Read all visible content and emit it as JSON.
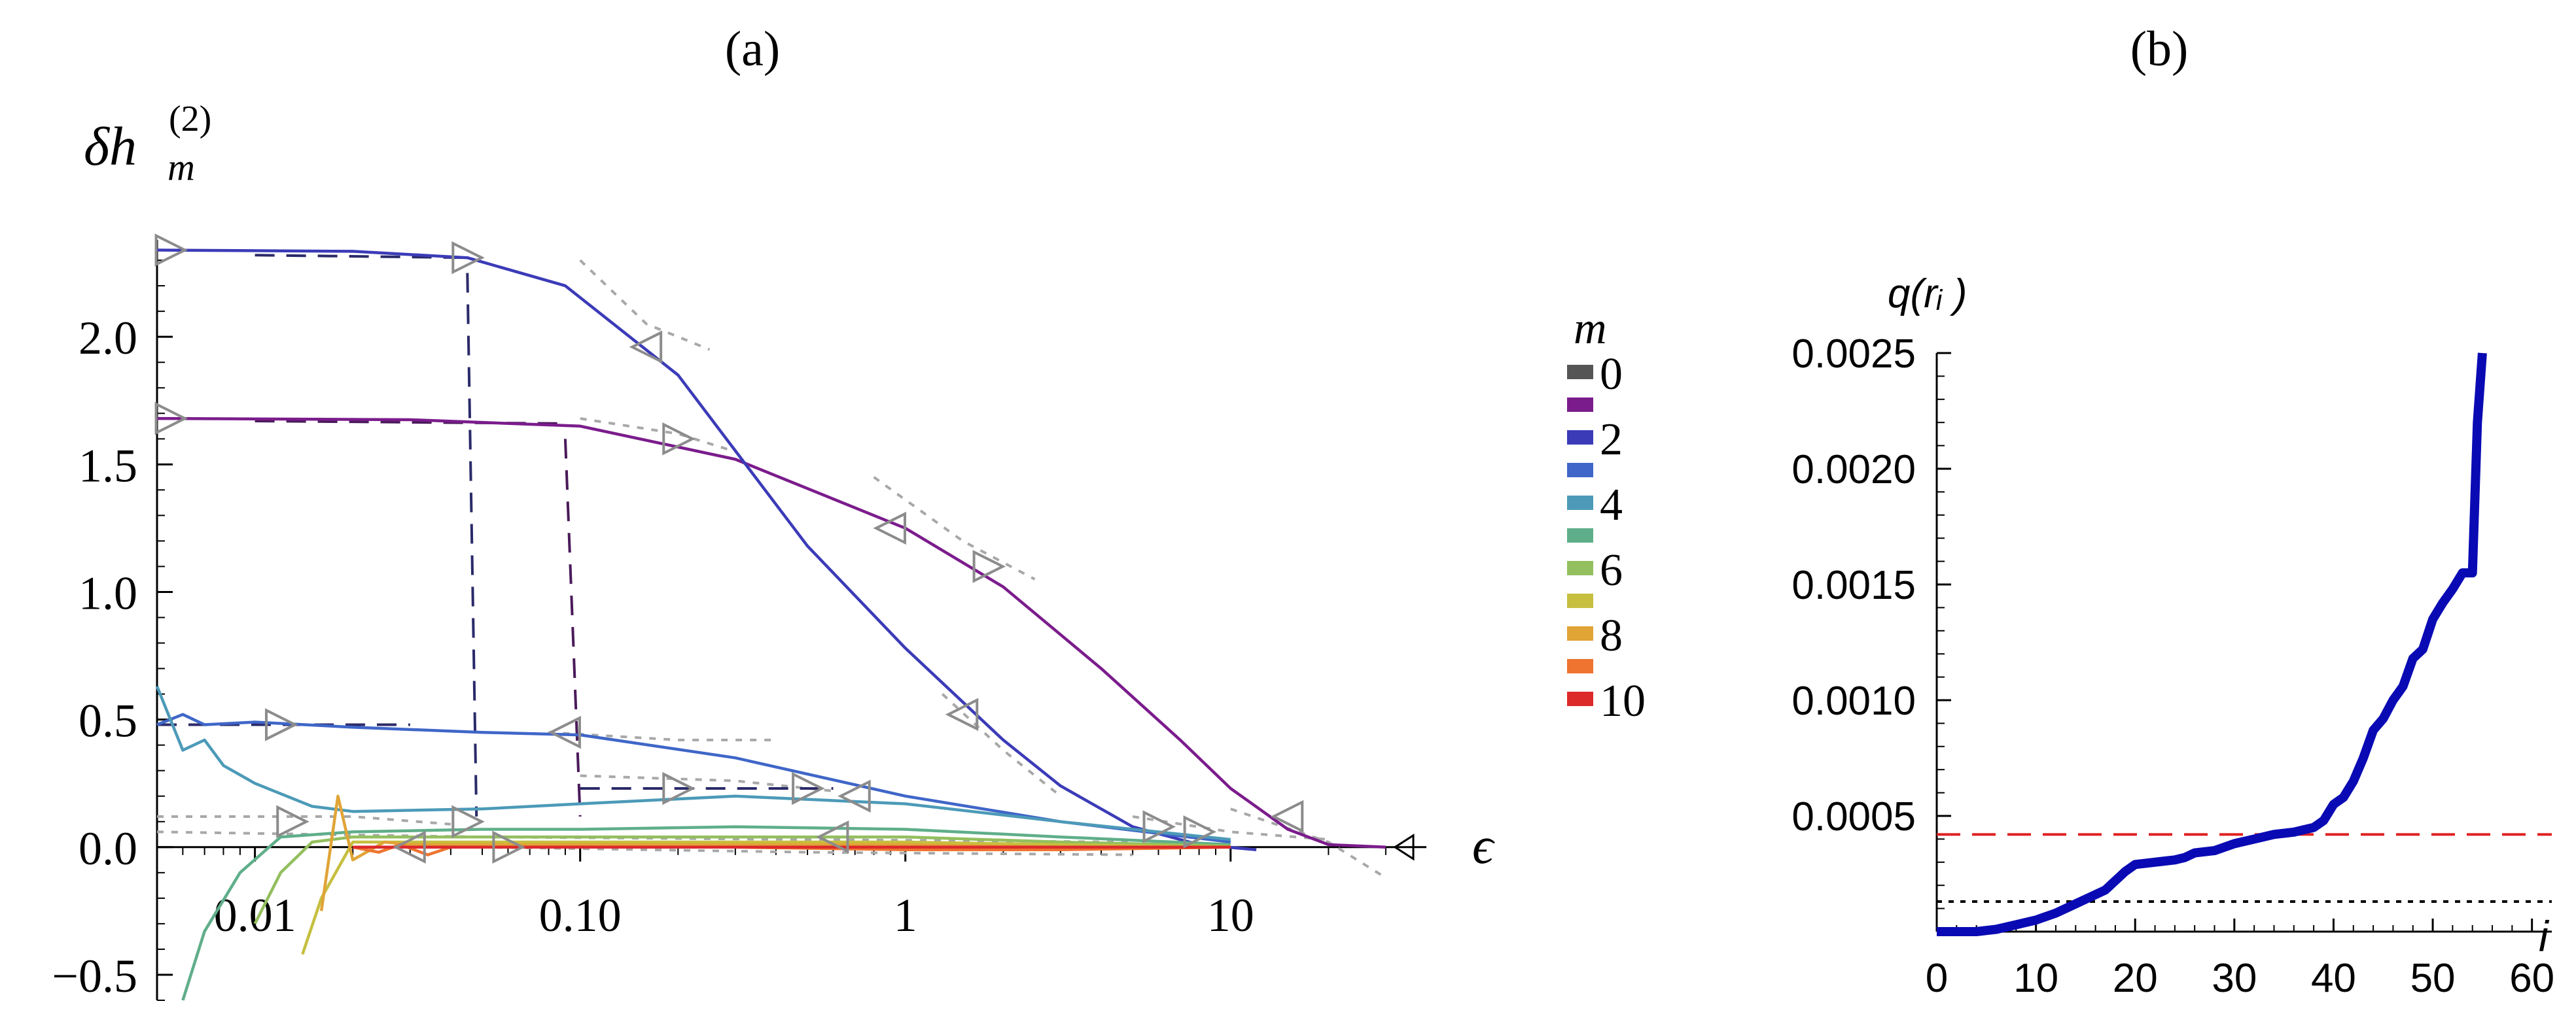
{
  "chart_data": [
    {
      "panel_label": "(a)",
      "type": "line",
      "ylabel_main": "δh",
      "ylabel_sup": "(2)",
      "ylabel_sub": "m",
      "xlabel": "ϵ",
      "xscale": "log",
      "xlim": [
        0.005,
        40
      ],
      "ylim": [
        -0.6,
        2.5
      ],
      "xticks": [
        {
          "value": 0.01,
          "label": "0.01"
        },
        {
          "value": 0.1,
          "label": "0.10"
        },
        {
          "value": 1,
          "label": "1"
        },
        {
          "value": 10,
          "label": "10"
        }
      ],
      "yticks": [
        {
          "value": -0.5,
          "label": "−0.5"
        },
        {
          "value": 0.0,
          "label": "0.0"
        },
        {
          "value": 0.5,
          "label": "0.5"
        },
        {
          "value": 1.0,
          "label": "1.0"
        },
        {
          "value": 1.5,
          "label": "1.5"
        },
        {
          "value": 2.0,
          "label": "2.0"
        }
      ],
      "legend_title": "m",
      "legend_position": "right",
      "legend": [
        {
          "label": "0",
          "color": "#555555"
        },
        {
          "label": "",
          "color": "#7b1c8c"
        },
        {
          "label": "2",
          "color": "#3b3bb8"
        },
        {
          "label": "",
          "color": "#3f66c8"
        },
        {
          "label": "4",
          "color": "#4c9ab8"
        },
        {
          "label": "",
          "color": "#5fae8a"
        },
        {
          "label": "6",
          "color": "#93bf5e"
        },
        {
          "label": "",
          "color": "#c6bf40"
        },
        {
          "label": "8",
          "color": "#e0a437"
        },
        {
          "label": "",
          "color": "#ee7430"
        },
        {
          "label": "10",
          "color": "#dc2a2a"
        }
      ],
      "series": [
        {
          "color": "#7b1c8c",
          "x": [
            0.005,
            0.03,
            0.1,
            0.3,
            1,
            2,
            4,
            7,
            10,
            15,
            20,
            30
          ],
          "y": [
            1.68,
            1.675,
            1.65,
            1.52,
            1.25,
            1.02,
            0.7,
            0.42,
            0.23,
            0.07,
            0.01,
            0.0
          ]
        },
        {
          "color": "#3b3bb8",
          "x": [
            0.005,
            0.02,
            0.045,
            0.09,
            0.2,
            0.5,
            1,
            2,
            3,
            5,
            8,
            12
          ],
          "y": [
            2.34,
            2.335,
            2.31,
            2.2,
            1.85,
            1.18,
            0.78,
            0.42,
            0.24,
            0.08,
            0.01,
            -0.01
          ]
        },
        {
          "color": "#3f66c8",
          "x": [
            0.005,
            0.006,
            0.007,
            0.01,
            0.02,
            0.05,
            0.1,
            0.3,
            1,
            3,
            10
          ],
          "y": [
            0.48,
            0.52,
            0.48,
            0.49,
            0.47,
            0.45,
            0.44,
            0.35,
            0.2,
            0.1,
            0.02
          ]
        },
        {
          "color": "#4c9ab8",
          "x": [
            0.005,
            0.006,
            0.007,
            0.008,
            0.01,
            0.015,
            0.02,
            0.05,
            0.1,
            0.3,
            1,
            3,
            10
          ],
          "y": [
            0.63,
            0.38,
            0.42,
            0.32,
            0.25,
            0.16,
            0.14,
            0.15,
            0.17,
            0.2,
            0.17,
            0.1,
            0.03
          ]
        },
        {
          "color": "#5fae8a",
          "x": [
            0.006,
            0.007,
            0.009,
            0.012,
            0.02,
            0.05,
            0.1,
            0.3,
            1,
            3,
            10
          ],
          "y": [
            -0.6,
            -0.33,
            -0.1,
            0.04,
            0.06,
            0.07,
            0.07,
            0.08,
            0.07,
            0.04,
            0.01
          ]
        },
        {
          "color": "#93bf5e",
          "x": [
            0.01,
            0.012,
            0.015,
            0.02,
            0.05,
            0.1,
            0.3,
            1,
            3,
            10
          ],
          "y": [
            -0.3,
            -0.1,
            0.02,
            0.04,
            0.04,
            0.04,
            0.04,
            0.04,
            0.02,
            0.005
          ]
        },
        {
          "color": "#c6bf40",
          "x": [
            0.014,
            0.016,
            0.02,
            0.03,
            0.05,
            0.1,
            0.3,
            1,
            3,
            10
          ],
          "y": [
            -0.42,
            -0.2,
            0.02,
            0.02,
            0.02,
            0.02,
            0.02,
            0.02,
            0.01,
            0.0
          ]
        },
        {
          "color": "#e0a437",
          "x": [
            0.016,
            0.018,
            0.02,
            0.025,
            0.03,
            0.05,
            0.1,
            0.3,
            1,
            3,
            10
          ],
          "y": [
            -0.25,
            0.2,
            -0.05,
            0.02,
            0.01,
            0.01,
            0.01,
            0.01,
            0.01,
            0.0,
            0.0
          ]
        },
        {
          "color": "#ee7430",
          "x": [
            0.02,
            0.024,
            0.028,
            0.034,
            0.04,
            0.06,
            0.1,
            0.3,
            1,
            3,
            10
          ],
          "y": [
            0.0,
            -0.02,
            0.01,
            -0.03,
            0.0,
            0.0,
            0.0,
            0.0,
            -0.01,
            -0.01,
            0.0
          ]
        },
        {
          "color": "#dc2a2a",
          "x": [
            0.02,
            0.1,
            1,
            10
          ],
          "y": [
            0.0,
            0.0,
            0.0,
            0.0
          ]
        }
      ]
    },
    {
      "panel_label": "(b)",
      "type": "line",
      "ylabel": "q(rᵢ )",
      "xlabel": "i",
      "xlim": [
        0,
        62
      ],
      "ylim": [
        0,
        0.0025
      ],
      "xticks": [
        {
          "value": 0,
          "label": "0"
        },
        {
          "value": 10,
          "label": "10"
        },
        {
          "value": 20,
          "label": "20"
        },
        {
          "value": 30,
          "label": "30"
        },
        {
          "value": 40,
          "label": "40"
        },
        {
          "value": 50,
          "label": "50"
        },
        {
          "value": 60,
          "label": "60"
        }
      ],
      "yticks": [
        {
          "value": 0.0005,
          "label": "0.0005"
        },
        {
          "value": 0.001,
          "label": "0.0010"
        },
        {
          "value": 0.0015,
          "label": "0.0015"
        },
        {
          "value": 0.002,
          "label": "0.0020"
        },
        {
          "value": 0.0025,
          "label": "0.0025"
        }
      ],
      "series": [
        {
          "color": "#0a0ab4",
          "x": [
            0,
            2,
            4,
            6,
            8,
            10,
            12,
            14,
            15,
            16,
            17,
            18,
            19,
            20,
            22,
            24,
            25,
            26,
            28,
            30,
            32,
            34,
            36,
            37,
            38,
            39,
            40,
            41,
            42,
            43,
            44,
            45,
            46,
            47,
            48,
            49,
            50,
            51,
            52,
            53,
            54,
            54.5,
            55
          ],
          "y": [
            0.0,
            0.0,
            0.0,
            1e-05,
            3e-05,
            5e-05,
            8e-05,
            0.00012,
            0.00014,
            0.00016,
            0.00018,
            0.00022,
            0.00026,
            0.00029,
            0.0003,
            0.00031,
            0.00032,
            0.00034,
            0.00035,
            0.00038,
            0.0004,
            0.00042,
            0.00043,
            0.00044,
            0.00045,
            0.00048,
            0.00055,
            0.00058,
            0.00065,
            0.00075,
            0.00087,
            0.00092,
            0.001,
            0.00106,
            0.00118,
            0.00122,
            0.00135,
            0.00142,
            0.00148,
            0.00155,
            0.00155,
            0.0022,
            0.0025
          ]
        }
      ],
      "reference_lines": [
        {
          "y": 0.00042,
          "color": "#e02020",
          "style": "dashed"
        },
        {
          "y": 0.00013,
          "color": "#000000",
          "style": "dotted"
        }
      ]
    }
  ]
}
